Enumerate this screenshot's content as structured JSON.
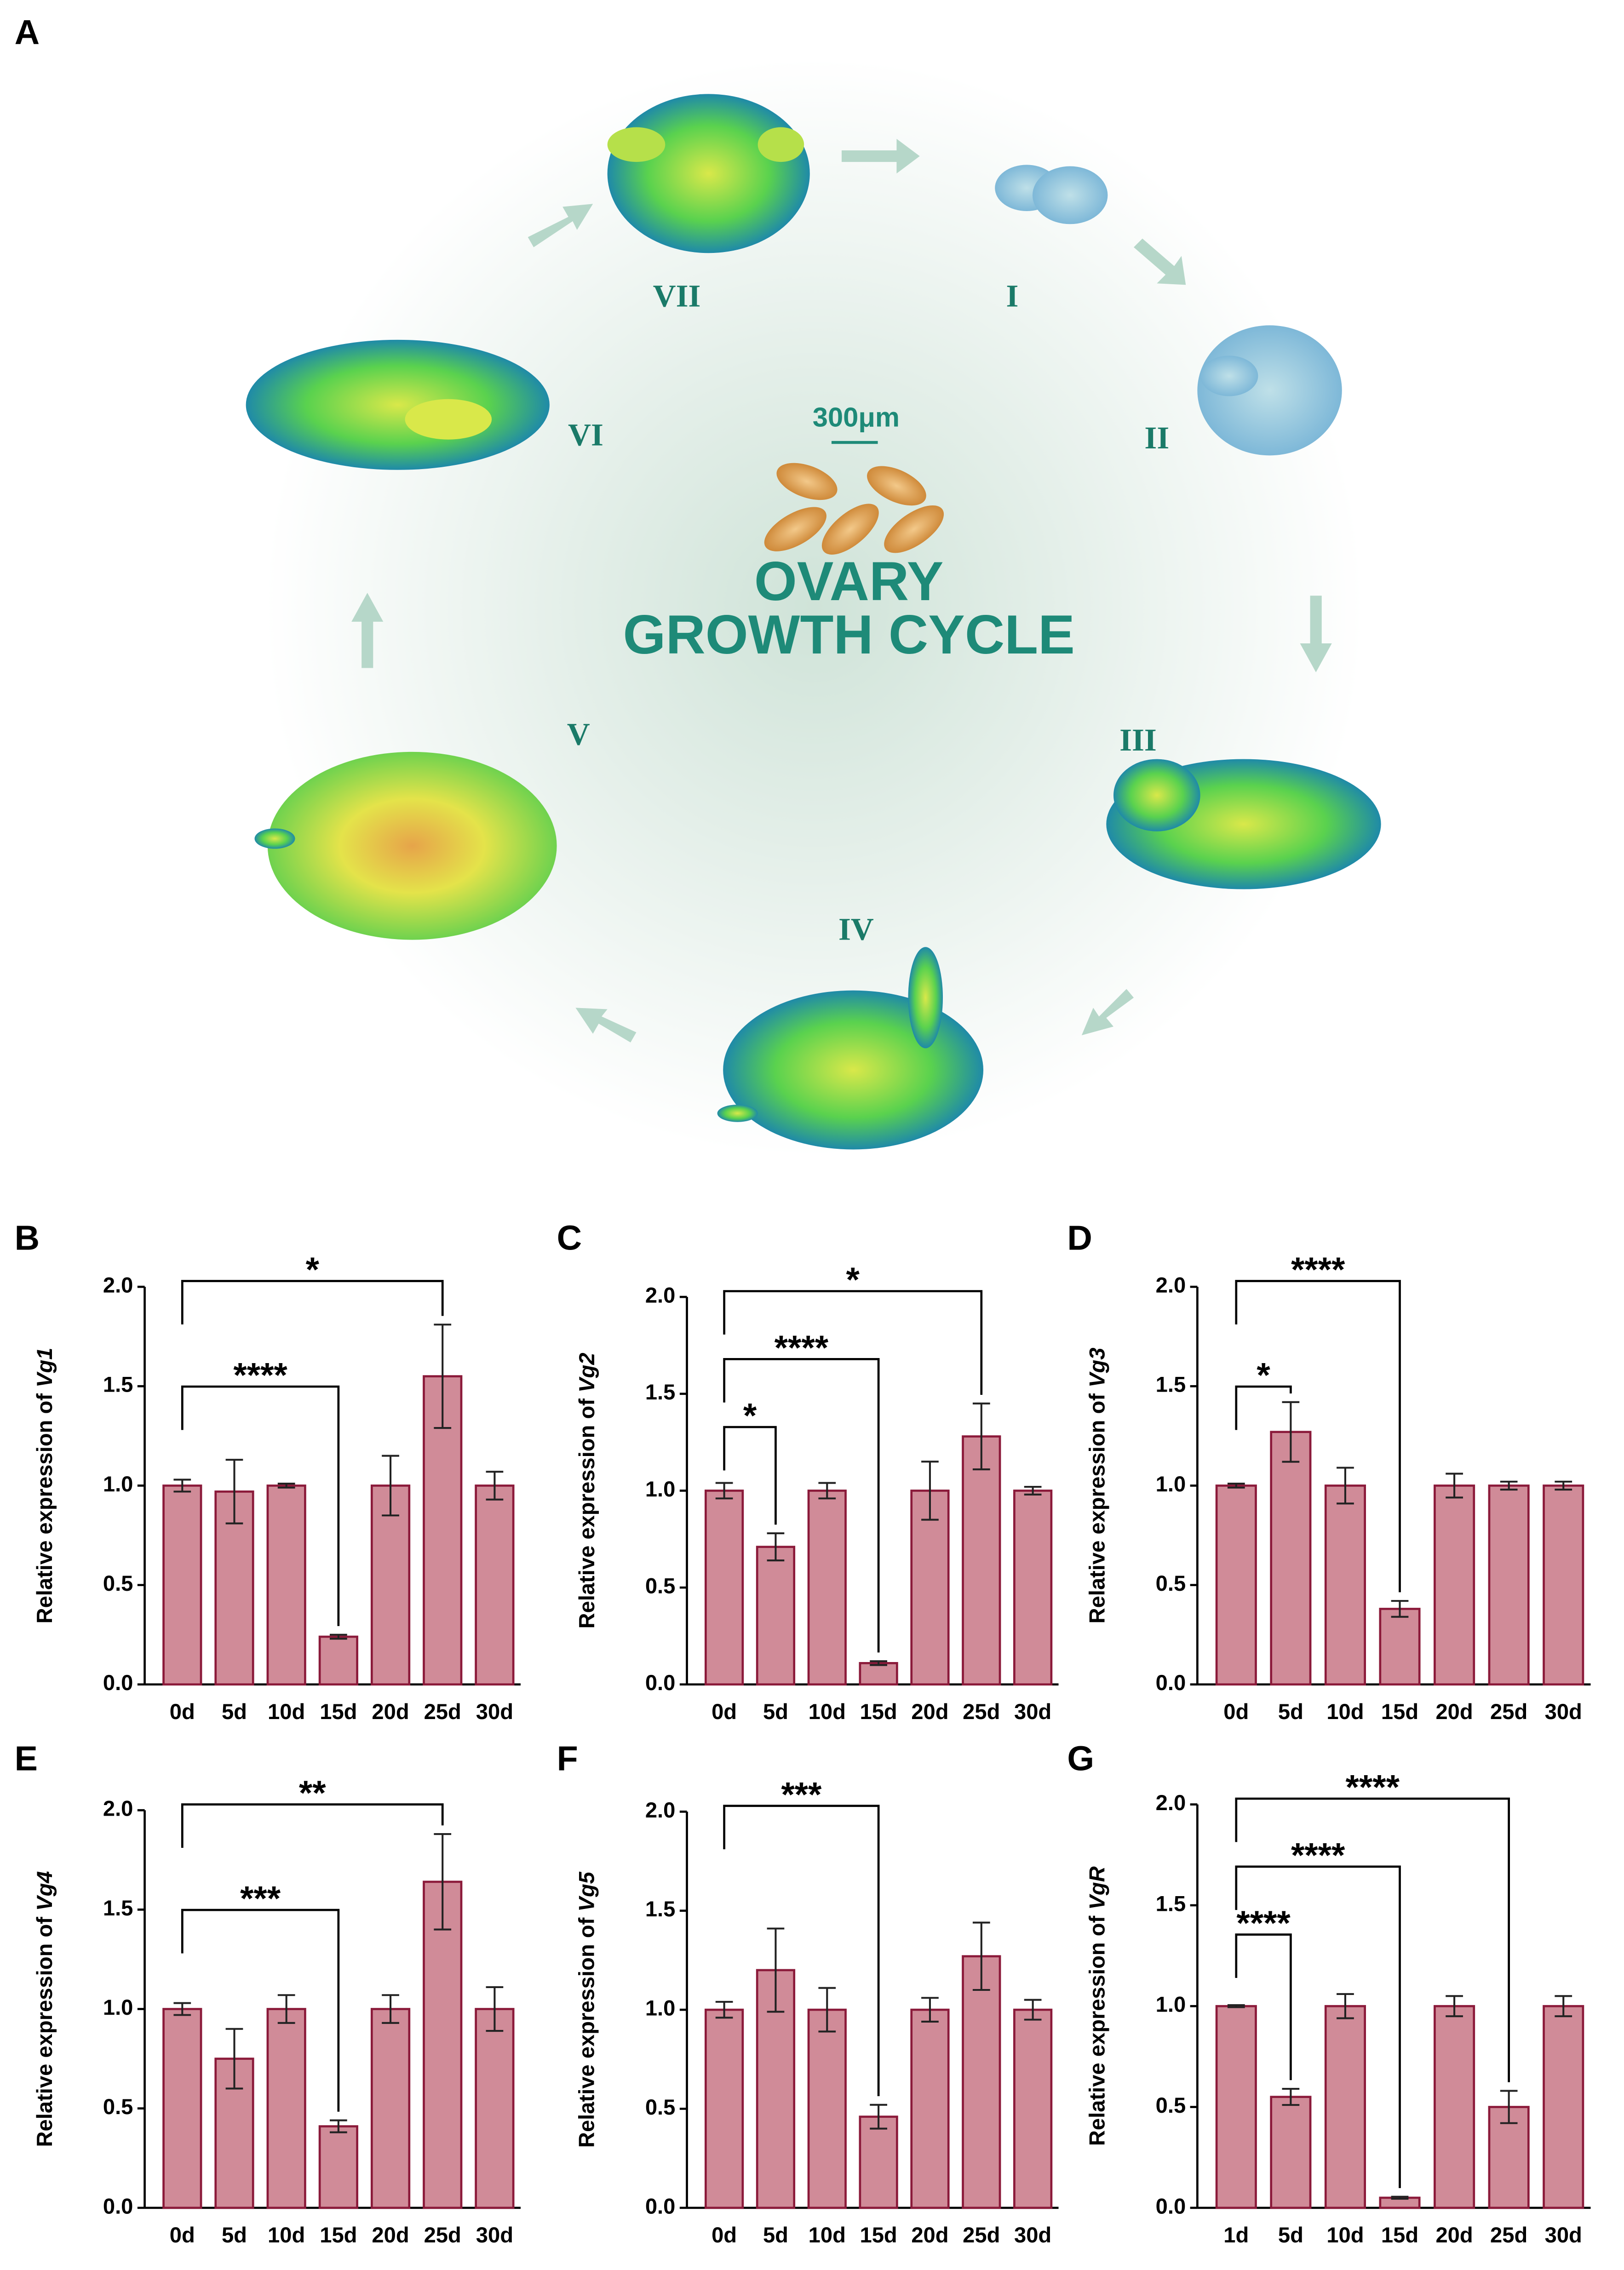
{
  "panel_a": {
    "letter": "A",
    "scale_bar": "300μm",
    "title_line1": "OVARY",
    "title_line2": "GROWTH CYCLE",
    "stages": [
      "I",
      "II",
      "III",
      "IV",
      "V",
      "VI",
      "VII"
    ]
  },
  "chart_data": [
    {
      "type": "bar",
      "panel": "B",
      "ylabel": "Relative expression of ",
      "gene": "Vg1",
      "color": "#d08b98",
      "edge": "#8b1a3a",
      "categories": [
        "0d",
        "5d",
        "10d",
        "15d",
        "20d",
        "25d",
        "30d"
      ],
      "values": [
        1.0,
        0.97,
        1.0,
        0.24,
        1.0,
        1.55,
        1.0
      ],
      "errors": [
        0.03,
        0.16,
        0.01,
        0.01,
        0.15,
        0.26,
        0.07
      ],
      "ylim": [
        0,
        2.0
      ],
      "yticks": [
        {
          "value": 0,
          "label": "0.0"
        },
        {
          "value": 0.5,
          "label": "0.5"
        },
        {
          "value": 1,
          "label": "1.0"
        },
        {
          "value": 1.5,
          "label": "1.5"
        },
        {
          "value": 2,
          "label": "2.0"
        }
      ],
      "significance": [
        {
          "from": "0d",
          "to": "25d",
          "label": "*"
        },
        {
          "from": "0d",
          "to": "15d",
          "label": "****"
        }
      ]
    },
    {
      "type": "bar",
      "panel": "C",
      "ylabel": "Relative expression of ",
      "gene": "Vg2",
      "color": "#d08b98",
      "edge": "#8b1a3a",
      "categories": [
        "0d",
        "5d",
        "10d",
        "15d",
        "20d",
        "25d",
        "30d"
      ],
      "values": [
        1.0,
        0.71,
        1.0,
        0.11,
        1.0,
        1.28,
        1.0
      ],
      "errors": [
        0.04,
        0.07,
        0.04,
        0.01,
        0.15,
        0.17,
        0.02
      ],
      "ylim": [
        0,
        2.0
      ],
      "yticks": [
        {
          "value": 0,
          "label": "0.0"
        },
        {
          "value": 0.5,
          "label": "0.5"
        },
        {
          "value": 1,
          "label": "1.0"
        },
        {
          "value": 1.5,
          "label": "1.5"
        },
        {
          "value": 2,
          "label": "2.0"
        }
      ],
      "significance": [
        {
          "from": "0d",
          "to": "25d",
          "label": "*"
        },
        {
          "from": "0d",
          "to": "15d",
          "label": "****"
        },
        {
          "from": "0d",
          "to": "5d",
          "label": "*"
        }
      ]
    },
    {
      "type": "bar",
      "panel": "D",
      "ylabel": "Relative expression of ",
      "gene": "Vg3",
      "color": "#d08b98",
      "edge": "#8b1a3a",
      "categories": [
        "0d",
        "5d",
        "10d",
        "15d",
        "20d",
        "25d",
        "30d"
      ],
      "values": [
        1.0,
        1.27,
        1.0,
        0.38,
        1.0,
        1.0,
        1.0
      ],
      "errors": [
        0.01,
        0.15,
        0.09,
        0.04,
        0.06,
        0.02,
        0.02
      ],
      "ylim": [
        0,
        2.0
      ],
      "yticks": [
        {
          "value": 0,
          "label": "0.0"
        },
        {
          "value": 0.5,
          "label": "0.5"
        },
        {
          "value": 1,
          "label": "1.0"
        },
        {
          "value": 1.5,
          "label": "1.5"
        },
        {
          "value": 2,
          "label": "2.0"
        }
      ],
      "significance": [
        {
          "from": "0d",
          "to": "15d",
          "label": "****"
        },
        {
          "from": "0d",
          "to": "5d",
          "label": "*"
        }
      ]
    },
    {
      "type": "bar",
      "panel": "E",
      "ylabel": "Relative expression of ",
      "gene": "Vg4",
      "color": "#d08b98",
      "edge": "#8b1a3a",
      "categories": [
        "0d",
        "5d",
        "10d",
        "15d",
        "20d",
        "25d",
        "30d"
      ],
      "values": [
        1.0,
        0.75,
        1.0,
        0.41,
        1.0,
        1.64,
        1.0
      ],
      "errors": [
        0.03,
        0.15,
        0.07,
        0.03,
        0.07,
        0.24,
        0.11
      ],
      "ylim": [
        0,
        2.0
      ],
      "yticks": [
        {
          "value": 0,
          "label": "0.0"
        },
        {
          "value": 0.5,
          "label": "0.5"
        },
        {
          "value": 1,
          "label": "1.0"
        },
        {
          "value": 1.5,
          "label": "1.5"
        },
        {
          "value": 2,
          "label": "2.0"
        }
      ],
      "significance": [
        {
          "from": "0d",
          "to": "25d",
          "label": "**"
        },
        {
          "from": "0d",
          "to": "15d",
          "label": "***"
        }
      ]
    },
    {
      "type": "bar",
      "panel": "F",
      "ylabel": "Relative expression of ",
      "gene": "Vg5",
      "color": "#d08b98",
      "edge": "#8b1a3a",
      "categories": [
        "0d",
        "5d",
        "10d",
        "15d",
        "20d",
        "25d",
        "30d"
      ],
      "values": [
        1.0,
        1.2,
        1.0,
        0.46,
        1.0,
        1.27,
        1.0
      ],
      "errors": [
        0.04,
        0.21,
        0.11,
        0.06,
        0.06,
        0.17,
        0.05
      ],
      "ylim": [
        0,
        2.0
      ],
      "yticks": [
        {
          "value": 0,
          "label": "0.0"
        },
        {
          "value": 0.5,
          "label": "0.5"
        },
        {
          "value": 1,
          "label": "1.0"
        },
        {
          "value": 1.5,
          "label": "1.5"
        },
        {
          "value": 2,
          "label": "2.0"
        }
      ],
      "significance": [
        {
          "from": "0d",
          "to": "15d",
          "label": "***"
        }
      ]
    },
    {
      "type": "bar",
      "panel": "G",
      "ylabel": "Relative expression of ",
      "gene": "VgR",
      "color": "#d08b98",
      "edge": "#8b1a3a",
      "categories": [
        "1d",
        "5d",
        "10d",
        "15d",
        "20d",
        "25d",
        "30d"
      ],
      "values": [
        1.0,
        0.55,
        1.0,
        0.05,
        1.0,
        0.5,
        1.0
      ],
      "errors": [
        0.005,
        0.04,
        0.06,
        0.005,
        0.05,
        0.08,
        0.05
      ],
      "ylim": [
        0,
        2.0
      ],
      "yticks": [
        {
          "value": 0,
          "label": "0.0"
        },
        {
          "value": 0.5,
          "label": "0.5"
        },
        {
          "value": 1,
          "label": "1.0"
        },
        {
          "value": 1.5,
          "label": "1.5"
        },
        {
          "value": 2,
          "label": "2.0"
        }
      ],
      "significance": [
        {
          "from": "1d",
          "to": "25d",
          "label": "****"
        },
        {
          "from": "1d",
          "to": "15d",
          "label": "****"
        },
        {
          "from": "1d",
          "to": "5d",
          "label": "****"
        }
      ]
    }
  ]
}
